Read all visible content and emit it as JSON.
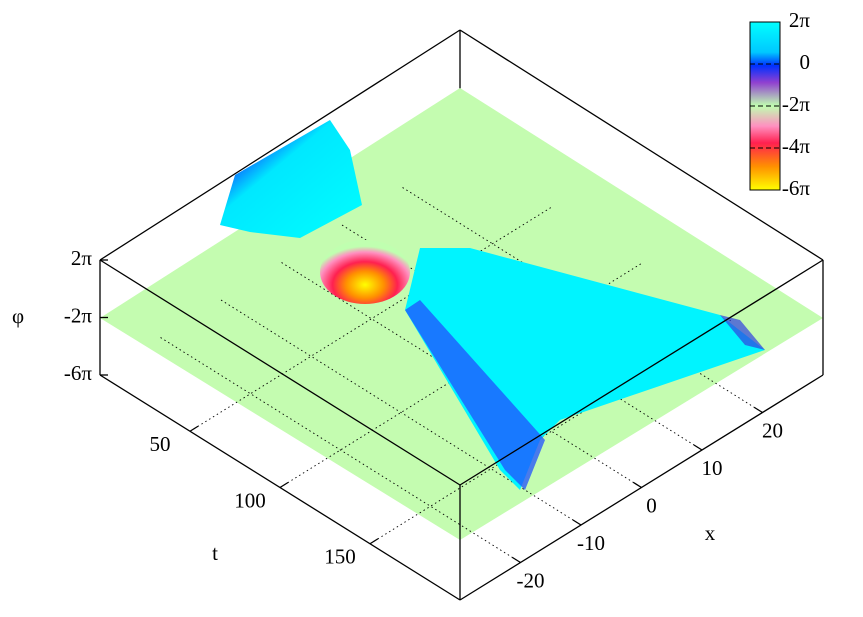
{
  "chart_data": {
    "type": "surface3d",
    "xlabel": "x",
    "ylabel": "t",
    "zlabel": "φ",
    "xlim": [
      -30,
      30
    ],
    "xticks": [
      -20,
      -10,
      0,
      10,
      20
    ],
    "ylim": [
      0,
      200
    ],
    "yticks": [
      50,
      100,
      150
    ],
    "zlim": [
      -18.849556,
      6.283185
    ],
    "zticks": [
      {
        "value": 6.283185,
        "label": "2π"
      },
      {
        "value": -6.283185,
        "label": "-2π"
      },
      {
        "value": -18.849556,
        "label": "-6π"
      }
    ],
    "colorbar": {
      "lim": [
        -18.849556,
        6.283185
      ],
      "ticks": [
        {
          "value": 6.283185,
          "label": "2π"
        },
        {
          "value": 0,
          "label": "0"
        },
        {
          "value": -6.283185,
          "label": "-2π"
        },
        {
          "value": -12.566371,
          "label": "-4π"
        },
        {
          "value": -18.849556,
          "label": "-6π"
        }
      ]
    },
    "grid": true
  }
}
